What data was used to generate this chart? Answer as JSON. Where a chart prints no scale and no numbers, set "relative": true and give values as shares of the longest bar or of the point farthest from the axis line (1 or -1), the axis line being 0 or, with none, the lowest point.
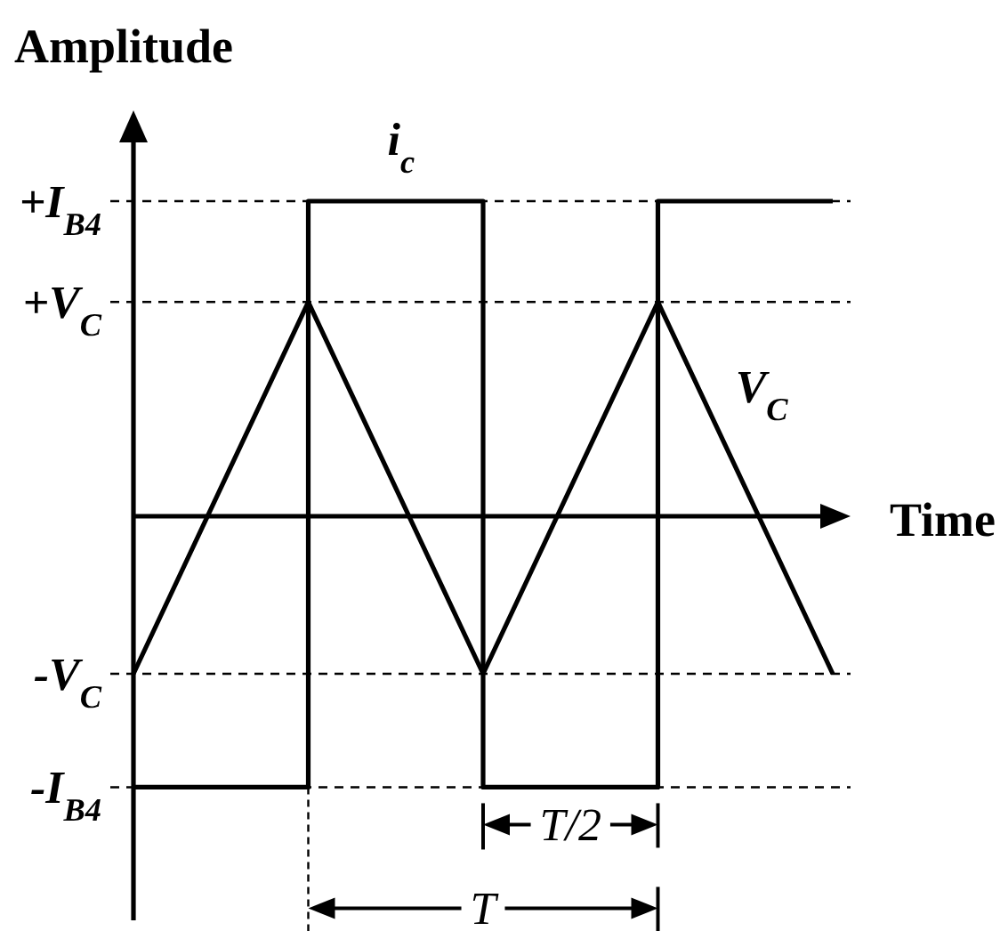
{
  "chart_data": {
    "type": "line",
    "xlabel": "Time",
    "ylabel": "Amplitude",
    "relative": true,
    "categories": [
      null,
      null,
      null,
      null,
      null
    ],
    "series": [
      {
        "name": "i$_{c}$",
        "type": "step",
        "color": "#000000",
        "values": [
          -0.86,
          1,
          -0.86,
          1,
          1
        ]
      },
      {
        "name": "V$_{C}$",
        "type": "line",
        "color": "#000000",
        "values": [
          -0.5,
          0.68,
          -0.5,
          0.68,
          -0.5
        ]
      }
    ],
    "ref_lines": [
      {
        "axis": "y",
        "value": 1,
        "label": "+I$_{B4}$",
        "line_style": "dashed"
      },
      {
        "axis": "y",
        "value": 0.68,
        "label": "+V$_{C}$",
        "line_style": "dashed"
      },
      {
        "axis": "y",
        "value": -0.5,
        "label": "-V$_{C}$",
        "line_style": "dashed"
      },
      {
        "axis": "y",
        "value": -0.86,
        "label": "-I$_{B4}$",
        "line_style": "dashed"
      }
    ],
    "annotations": [
      "T/2",
      "T"
    ]
  }
}
